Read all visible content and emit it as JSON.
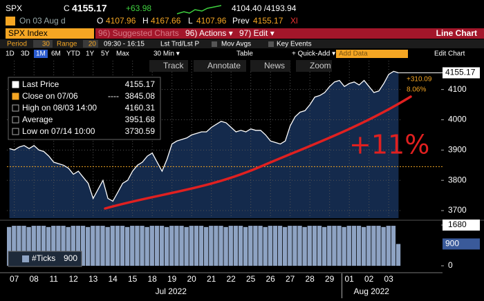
{
  "header": {
    "ticker": "SPX",
    "c": "C",
    "last": "4155.17",
    "change": "+63.98",
    "range": "4104.40 /4193.94",
    "date": "On 03 Aug d",
    "open_label": "O",
    "open": "4107.96",
    "high_label": "H",
    "high": "4167.66",
    "low_label": "L",
    "low": "4107.96",
    "prev_label": "Prev",
    "prev": "4155.17",
    "xl": "Xl"
  },
  "menu": {
    "security": "SPX Index",
    "suggested": "96) Suggested Charts",
    "actions": "96) Actions ▾",
    "edit": "97) Edit ▾",
    "chart_type": "Line Chart"
  },
  "settings": {
    "period_label": "Period",
    "period": "30",
    "range_label": "Range",
    "range": "20",
    "session": "09:30 - 16:15",
    "mode": "Lst Trd/Lst P",
    "mov_avgs": "Mov Avgs",
    "key_events": "Key Events"
  },
  "toolbar": {
    "periods": [
      "1D",
      "3D",
      "1M",
      "6M",
      "YTD",
      "1Y",
      "5Y",
      "Max"
    ],
    "interval": "30 Min ▾",
    "table": "Table",
    "quick_add": "+ Quick-Add ▾",
    "add_data": "Add Data",
    "edit_chart": "Edit Chart"
  },
  "tools": [
    "Track",
    "Annotate",
    "News",
    "Zoom"
  ],
  "chart_data": {
    "type": "line",
    "categories": [
      null,
      "07",
      null,
      null,
      null,
      "08",
      null,
      null,
      null,
      "11",
      null,
      null,
      null,
      "12",
      null,
      null,
      null,
      "13",
      null,
      null,
      null,
      "14",
      null,
      null,
      null,
      "15",
      null,
      null,
      null,
      "18",
      null,
      null,
      null,
      "19",
      null,
      null,
      null,
      "20",
      null,
      null,
      null,
      "21",
      null,
      null,
      null,
      "22",
      null,
      null,
      null,
      "25",
      null,
      null,
      null,
      "26",
      null,
      null,
      null,
      "27",
      null,
      null,
      null,
      "28",
      null,
      null,
      null,
      "29",
      null,
      null,
      null,
      "01",
      null,
      null,
      null,
      "02",
      null,
      null,
      null,
      "03",
      null,
      null
    ],
    "months": [
      "Jul 2022",
      "Aug 2022"
    ],
    "series": [
      {
        "name": "Last Price",
        "color": "#ffffff",
        "values": [
          3905,
          3900,
          3910,
          3915,
          3905,
          3915,
          3900,
          3895,
          3880,
          3860,
          3855,
          3850,
          3840,
          3820,
          3830,
          3810,
          3790,
          3740,
          3770,
          3800,
          3740,
          3731,
          3760,
          3790,
          3800,
          3830,
          3850,
          3860,
          3880,
          3890,
          3860,
          3830,
          3870,
          3920,
          3930,
          3935,
          3940,
          3950,
          3955,
          3960,
          3960,
          3975,
          3985,
          3995,
          3990,
          3975,
          3960,
          3965,
          3960,
          3970,
          3965,
          3965,
          3950,
          3930,
          3925,
          3920,
          3930,
          3980,
          4010,
          4025,
          4030,
          4050,
          4075,
          4080,
          4090,
          4110,
          4125,
          4130,
          4110,
          4120,
          4125,
          4115,
          4130,
          4110,
          4090,
          4095,
          4120,
          4150,
          4160,
          4155.17
        ]
      }
    ],
    "ylim": [
      3675,
      4195
    ],
    "yticks": [
      3700,
      3800,
      3900,
      4000,
      4100
    ],
    "grid": true,
    "reference_line": {
      "value": 3845.08,
      "color": "#f5a623"
    },
    "legend": [
      {
        "label": "Last Price",
        "value": "4155.17"
      },
      {
        "label": "Close on 07/06",
        "dash": "----",
        "value": "3845.08"
      },
      {
        "label": "High on 08/03 14:00",
        "value": "4160.31"
      },
      {
        "label": "Average",
        "value": "3951.68"
      },
      {
        "label": "Low on 07/14 10:00",
        "value": "3730.59"
      }
    ],
    "annotations": {
      "change": "+310.09",
      "change_pct": "8.06%",
      "handwritten": "+11%"
    },
    "ticks_panel": {
      "name": "#Ticks",
      "color": "#8ea3c3",
      "ylim": [
        0,
        1680
      ],
      "yticks": [
        0,
        1680
      ],
      "values": [
        1600,
        1650,
        1650,
        1650,
        1600,
        1650,
        1650,
        1650,
        1600,
        1650,
        1650,
        1650,
        1600,
        1650,
        1650,
        1650,
        1600,
        1650,
        1650,
        1650,
        1600,
        1650,
        1650,
        1650,
        1600,
        1650,
        1650,
        1650,
        1600,
        1650,
        1650,
        1650,
        1600,
        1650,
        1650,
        1650,
        1600,
        1650,
        1650,
        1650,
        1600,
        1650,
        1650,
        1650,
        1600,
        1650,
        1650,
        1650,
        1600,
        1650,
        1650,
        1650,
        1600,
        1650,
        1650,
        1650,
        1600,
        1650,
        1650,
        1650,
        1600,
        1650,
        1650,
        1650,
        1600,
        1650,
        1650,
        1650,
        1600,
        1650,
        1650,
        1650,
        1600,
        1650,
        1650,
        1650,
        1600,
        1650,
        1650,
        900
      ]
    }
  }
}
